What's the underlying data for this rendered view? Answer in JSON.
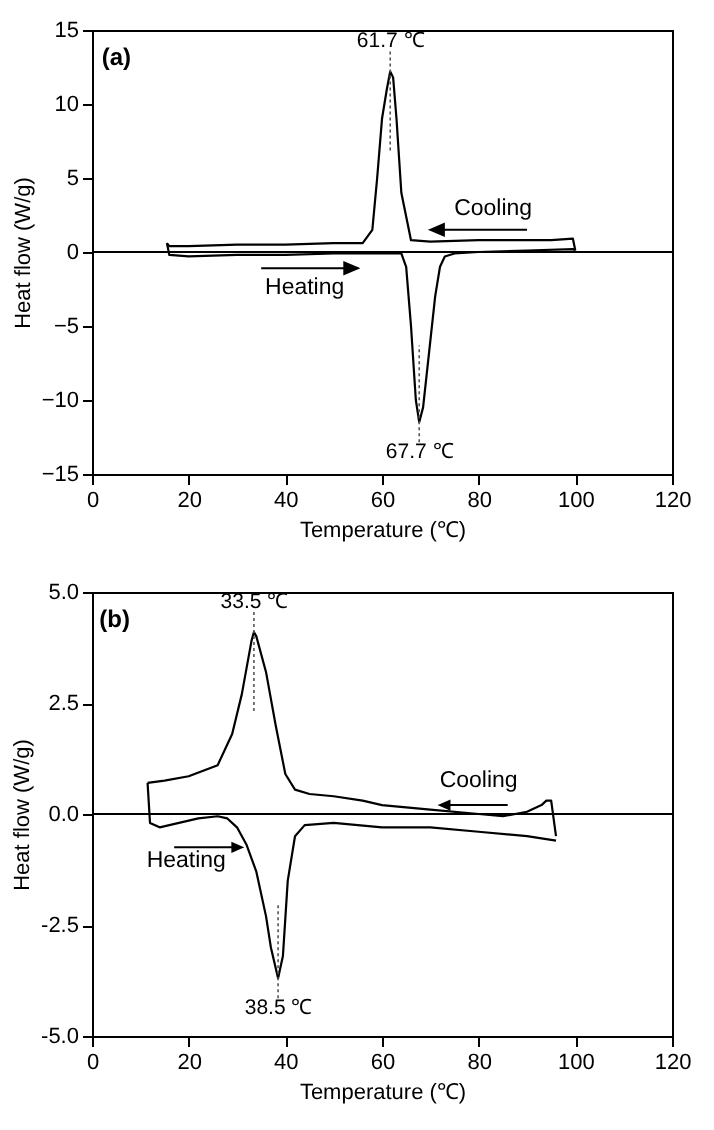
{
  "chart_data": [
    {
      "type": "line",
      "xlabel": "Temperature (℃)",
      "ylabel": "Heat flow (W/g)",
      "xlim": [
        0,
        120
      ],
      "xticks": [
        0,
        20,
        40,
        60,
        80,
        100,
        120
      ],
      "ylim": [
        -15,
        15
      ],
      "yticks": [
        -15,
        -10,
        -5,
        0,
        5,
        10,
        15
      ],
      "series": [
        {
          "color": "#000000",
          "x": [
            100,
            99.5,
            95,
            90,
            80,
            70,
            66,
            64,
            63,
            62.3,
            61.7,
            61,
            60,
            59,
            58,
            56,
            50,
            40,
            30,
            20,
            16,
            15.5
          ],
          "values": [
            0.1,
            0.9,
            0.8,
            0.8,
            0.8,
            0.7,
            0.8,
            4,
            9,
            11.8,
            12.2,
            11,
            9,
            5,
            1.5,
            0.6,
            0.6,
            0.5,
            0.5,
            0.4,
            0.4,
            0.6
          ]
        },
        {
          "color": "#000000",
          "x": [
            15.5,
            16,
            20,
            30,
            40,
            50,
            60,
            64,
            65,
            66,
            67,
            67.7,
            68.5,
            70,
            71,
            72,
            73,
            75,
            80,
            90,
            99.5,
            100
          ],
          "values": [
            0.6,
            -0.2,
            -0.3,
            -0.2,
            -0.2,
            -0.1,
            -0.1,
            -0.1,
            -1,
            -5,
            -10,
            -11.5,
            -10.5,
            -6,
            -3,
            -1,
            -0.3,
            -0.1,
            0,
            0.1,
            0.2,
            0.1
          ]
        }
      ],
      "ref_lines": [
        {
          "axis": "y",
          "value": 0
        }
      ],
      "annotations": [
        "(a)",
        {
          "text": "61.7 ℃",
          "x": 61.7,
          "y": 12.2
        },
        {
          "text": "67.7 ℃",
          "x": 67.7,
          "y": -11.5
        },
        "Cooling",
        "Heating"
      ]
    },
    {
      "type": "line",
      "xlabel": "Temperature (℃)",
      "ylabel": "Heat flow (W/g)",
      "xlim": [
        0,
        120
      ],
      "xticks": [
        0,
        20,
        40,
        60,
        80,
        100,
        120
      ],
      "ylim": [
        -5,
        5
      ],
      "yticks": [
        {
          "value": -5,
          "label": "-5.0"
        },
        {
          "value": -2.5,
          "label": "-2.5"
        },
        {
          "value": 0,
          "label": "0.0"
        },
        {
          "value": 2.5,
          "label": "2.5"
        },
        {
          "value": 5,
          "label": "5.0"
        }
      ],
      "series": [
        {
          "color": "#000000",
          "x": [
            96,
            95,
            94,
            93,
            90,
            85,
            80,
            70,
            60,
            56,
            50,
            45,
            42,
            40,
            38,
            36,
            34,
            33.5,
            33,
            31,
            29,
            26,
            20,
            15,
            11.5
          ],
          "values": [
            -0.5,
            0.3,
            0.3,
            0.2,
            0.05,
            -0.05,
            0,
            0.1,
            0.2,
            0.3,
            0.4,
            0.45,
            0.55,
            0.9,
            2,
            3.2,
            4,
            4.1,
            3.9,
            2.7,
            1.8,
            1.1,
            0.85,
            0.75,
            0.7
          ]
        },
        {
          "color": "#000000",
          "x": [
            11.5,
            12,
            14,
            18,
            22,
            26,
            28,
            30,
            32,
            34,
            36,
            37,
            38.5,
            39.5,
            40.5,
            42,
            44,
            50,
            60,
            70,
            80,
            90,
            96
          ],
          "values": [
            0.7,
            -0.2,
            -0.3,
            -0.2,
            -0.1,
            -0.05,
            -0.1,
            -0.3,
            -0.7,
            -1.3,
            -2.3,
            -3,
            -3.7,
            -3.2,
            -1.5,
            -0.5,
            -0.25,
            -0.2,
            -0.3,
            -0.3,
            -0.4,
            -0.5,
            -0.6
          ]
        }
      ],
      "ref_lines": [
        {
          "axis": "y",
          "value": 0
        }
      ],
      "annotations": [
        "(b)",
        {
          "text": "33.5 ℃",
          "x": 33.5,
          "y": 4.1
        },
        {
          "text": "38.5 ℃",
          "x": 38.5,
          "y": -3.7
        },
        "Cooling",
        "Heating"
      ]
    }
  ]
}
